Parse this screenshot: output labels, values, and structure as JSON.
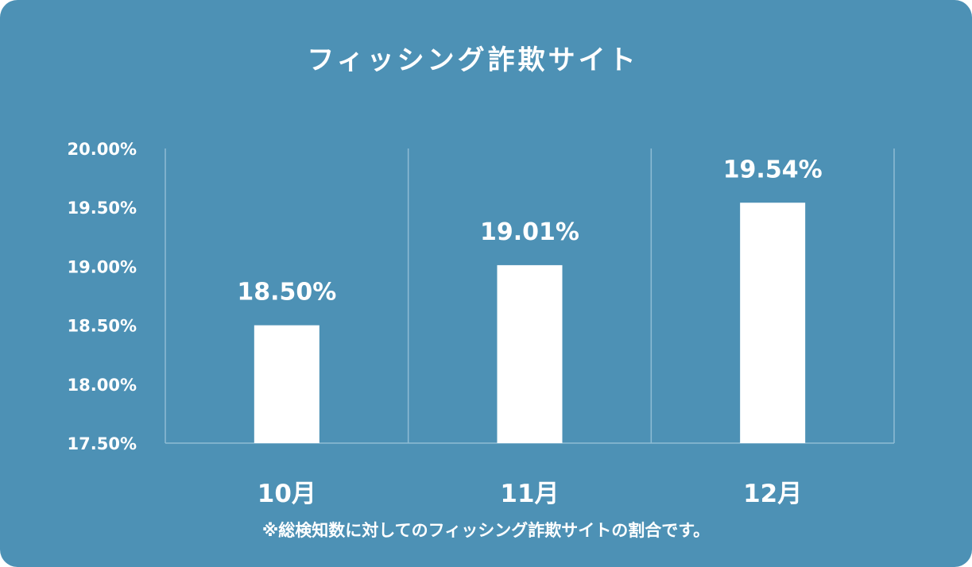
{
  "chart_data": {
    "type": "bar",
    "title": "フィッシング詐欺サイト",
    "categories": [
      "10月",
      "11月",
      "12月"
    ],
    "values": [
      18.5,
      19.01,
      19.54
    ],
    "value_labels": [
      "18.50%",
      "19.01%",
      "19.54%"
    ],
    "y_ticks": [
      "20.00%",
      "19.50%",
      "19.00%",
      "18.50%",
      "18.00%",
      "17.50%"
    ],
    "ylim": [
      17.5,
      20.0
    ],
    "grid": "vertical-category-dividers",
    "legend": "none",
    "colors": {
      "background": "#4d91b5",
      "bar": "#ffffff",
      "text": "#ffffff",
      "gridline": "#8fbcd4"
    },
    "footnote": "※総検知数に対してのフィッシング詐欺サイトの割合です。"
  }
}
